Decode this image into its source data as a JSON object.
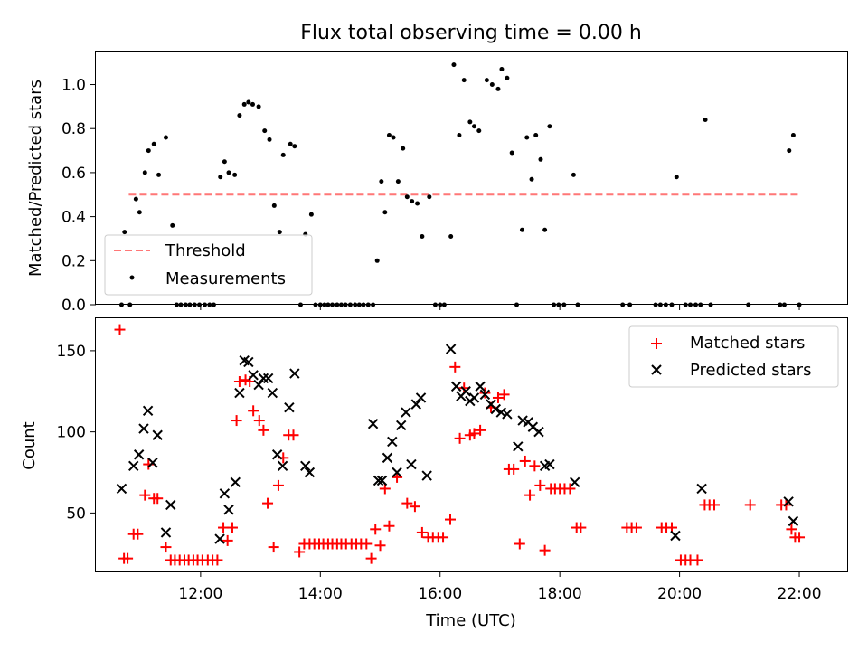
{
  "chart_data": [
    {
      "type": "scatter",
      "title": "Flux total observing time = 0.00 h",
      "xlabel": "",
      "ylabel": "Matched/Predicted stars",
      "xlim": [
        10.25,
        22.8
      ],
      "ylim": [
        0,
        1.15
      ],
      "yticks": [
        0.0,
        0.2,
        0.4,
        0.6,
        0.8,
        1.0
      ],
      "ytick_labels": [
        "0.0",
        "0.2",
        "0.4",
        "0.6",
        "0.8",
        "1.0"
      ],
      "legend_position": "lower-left",
      "threshold": {
        "name": "Threshold",
        "value": 0.5,
        "x_range": [
          10.8,
          22.0
        ],
        "color": "#ff7777",
        "style": "dashed"
      },
      "series": [
        {
          "name": "Measurements",
          "color": "#000000",
          "marker": "dot",
          "x": [
            10.68,
            10.73,
            10.82,
            10.92,
            10.98,
            11.07,
            11.13,
            11.22,
            11.3,
            11.42,
            11.53,
            11.6,
            11.67,
            11.75,
            11.82,
            11.9,
            11.98,
            12.07,
            12.15,
            12.22,
            12.33,
            12.4,
            12.47,
            12.57,
            12.65,
            12.73,
            12.8,
            12.87,
            12.97,
            13.07,
            13.15,
            13.23,
            13.32,
            13.38,
            13.5,
            13.57,
            13.67,
            13.75,
            13.85,
            13.92,
            14.0,
            14.07,
            14.13,
            14.2,
            14.28,
            14.35,
            14.42,
            14.5,
            14.58,
            14.65,
            14.72,
            14.8,
            14.88,
            14.95,
            15.02,
            15.08,
            15.15,
            15.22,
            15.3,
            15.38,
            15.45,
            15.53,
            15.62,
            15.7,
            15.82,
            15.92,
            16.0,
            16.07,
            16.18,
            16.23,
            16.32,
            16.4,
            16.5,
            16.57,
            16.65,
            16.78,
            16.87,
            16.97,
            17.03,
            17.12,
            17.2,
            17.28,
            17.37,
            17.45,
            17.53,
            17.6,
            17.68,
            17.75,
            17.83,
            17.9,
            17.98,
            18.07,
            18.23,
            18.3,
            19.05,
            19.17,
            19.6,
            19.68,
            19.77,
            19.87,
            19.95,
            20.1,
            20.18,
            20.27,
            20.35,
            20.43,
            20.52,
            21.15,
            21.68,
            21.75,
            21.83,
            21.9,
            22.0
          ],
          "y": [
            0.0,
            0.33,
            0.0,
            0.48,
            0.42,
            0.6,
            0.7,
            0.73,
            0.59,
            0.76,
            0.36,
            0.0,
            0.0,
            0.0,
            0.0,
            0.0,
            0.0,
            0.0,
            0.0,
            0.0,
            0.58,
            0.65,
            0.6,
            0.59,
            0.86,
            0.91,
            0.92,
            0.91,
            0.9,
            0.79,
            0.75,
            0.45,
            0.33,
            0.68,
            0.73,
            0.72,
            0.0,
            0.32,
            0.41,
            0.0,
            0.0,
            0.0,
            0.0,
            0.0,
            0.0,
            0.0,
            0.0,
            0.0,
            0.0,
            0.0,
            0.0,
            0.0,
            0.0,
            0.2,
            0.56,
            0.42,
            0.77,
            0.76,
            0.56,
            0.71,
            0.49,
            0.47,
            0.46,
            0.31,
            0.49,
            0.0,
            0.0,
            0.0,
            0.31,
            1.09,
            0.77,
            1.02,
            0.83,
            0.81,
            0.79,
            1.02,
            1.0,
            0.98,
            1.07,
            1.03,
            0.69,
            0.0,
            0.34,
            0.76,
            0.57,
            0.77,
            0.66,
            0.34,
            0.81,
            0.0,
            0.0,
            0.0,
            0.59,
            0.0,
            0.0,
            0.0,
            0.0,
            0.0,
            0.0,
            0.0,
            0.58,
            0.0,
            0.0,
            0.0,
            0.0,
            0.84,
            0.0,
            0.0,
            0.0,
            0.0,
            0.7,
            0.77,
            0.0
          ]
        }
      ]
    },
    {
      "type": "scatter",
      "title": "",
      "xlabel": "Time (UTC)",
      "ylabel": "Count",
      "xlim": [
        10.25,
        22.8
      ],
      "ylim": [
        14,
        170
      ],
      "yticks": [
        50,
        100,
        150
      ],
      "ytick_labels": [
        "50",
        "100",
        "150"
      ],
      "xticks": [
        12,
        14,
        16,
        18,
        20,
        22
      ],
      "xtick_labels": [
        "12:00",
        "14:00",
        "16:00",
        "18:00",
        "20:00",
        "22:00"
      ],
      "legend_position": "upper-right",
      "series": [
        {
          "name": "Matched stars",
          "color": "#ff0000",
          "marker": "plus",
          "x": [
            10.65,
            10.72,
            10.78,
            10.88,
            10.95,
            11.07,
            11.13,
            11.22,
            11.28,
            11.42,
            11.5,
            11.57,
            11.65,
            11.73,
            11.8,
            11.88,
            11.95,
            12.03,
            12.12,
            12.2,
            12.28,
            12.38,
            12.45,
            12.53,
            12.6,
            12.65,
            12.75,
            12.82,
            12.88,
            12.98,
            13.05,
            13.12,
            13.22,
            13.3,
            13.38,
            13.47,
            13.55,
            13.65,
            13.73,
            13.82,
            13.9,
            13.98,
            14.05,
            14.13,
            14.2,
            14.28,
            14.35,
            14.43,
            14.52,
            14.6,
            14.68,
            14.77,
            14.85,
            14.92,
            15.0,
            15.08,
            15.15,
            15.28,
            15.45,
            15.58,
            15.7,
            15.8,
            15.88,
            15.97,
            16.05,
            16.17,
            16.25,
            16.33,
            16.4,
            16.5,
            16.57,
            16.67,
            16.75,
            16.85,
            16.97,
            17.07,
            17.15,
            17.23,
            17.33,
            17.42,
            17.5,
            17.58,
            17.67,
            17.75,
            17.85,
            17.92,
            18.0,
            18.08,
            18.17,
            18.28,
            18.35,
            19.12,
            19.2,
            19.28,
            19.7,
            19.78,
            19.87,
            20.02,
            20.1,
            20.18,
            20.3,
            20.42,
            20.5,
            20.58,
            21.18,
            21.7,
            21.78,
            21.87,
            21.93,
            22.0
          ],
          "y": [
            163,
            22,
            22,
            37,
            37,
            61,
            80,
            59,
            59,
            29,
            21,
            21,
            21,
            21,
            21,
            21,
            21,
            21,
            21,
            21,
            21,
            41,
            33,
            41,
            107,
            131,
            132,
            131,
            113,
            107,
            101,
            56,
            29,
            67,
            84,
            98,
            98,
            26,
            31,
            31,
            31,
            31,
            31,
            31,
            31,
            31,
            31,
            31,
            31,
            31,
            31,
            31,
            22,
            40,
            30,
            65,
            42,
            72,
            56,
            54,
            38,
            35,
            35,
            35,
            35,
            46,
            140,
            96,
            127,
            98,
            99,
            101,
            124,
            115,
            121,
            123,
            77,
            77,
            31,
            82,
            61,
            79,
            67,
            27,
            65,
            65,
            65,
            65,
            65,
            41,
            41,
            41,
            41,
            41,
            41,
            41,
            41,
            21,
            21,
            21,
            21,
            55,
            55,
            55,
            55,
            55,
            55,
            40,
            35,
            35
          ]
        },
        {
          "name": "Predicted stars",
          "color": "#000000",
          "marker": "x",
          "x": [
            10.68,
            10.88,
            10.97,
            11.05,
            11.12,
            11.2,
            11.28,
            11.42,
            11.5,
            12.32,
            12.4,
            12.47,
            12.58,
            12.65,
            12.73,
            12.8,
            12.88,
            12.97,
            13.05,
            13.13,
            13.2,
            13.28,
            13.37,
            13.48,
            13.57,
            13.75,
            13.82,
            14.88,
            14.97,
            15.03,
            15.12,
            15.2,
            15.28,
            15.35,
            15.43,
            15.52,
            15.6,
            15.68,
            15.78,
            16.18,
            16.27,
            16.35,
            16.43,
            16.5,
            16.57,
            16.67,
            16.75,
            16.85,
            16.93,
            17.02,
            17.12,
            17.3,
            17.38,
            17.47,
            17.55,
            17.65,
            17.75,
            17.83,
            18.25,
            20.37,
            19.93,
            21.82,
            21.9
          ],
          "y": [
            65,
            79,
            86,
            102,
            113,
            81,
            98,
            38,
            55,
            34,
            62,
            52,
            69,
            124,
            144,
            143,
            135,
            129,
            133,
            133,
            124,
            86,
            79,
            115,
            136,
            79,
            75,
            105,
            70,
            70,
            84,
            94,
            75,
            104,
            112,
            80,
            117,
            121,
            73,
            151,
            128,
            122,
            125,
            119,
            121,
            128,
            123,
            117,
            114,
            112,
            111,
            91,
            107,
            106,
            103,
            100,
            79,
            80,
            69,
            65,
            36,
            57,
            45
          ]
        }
      ]
    }
  ]
}
